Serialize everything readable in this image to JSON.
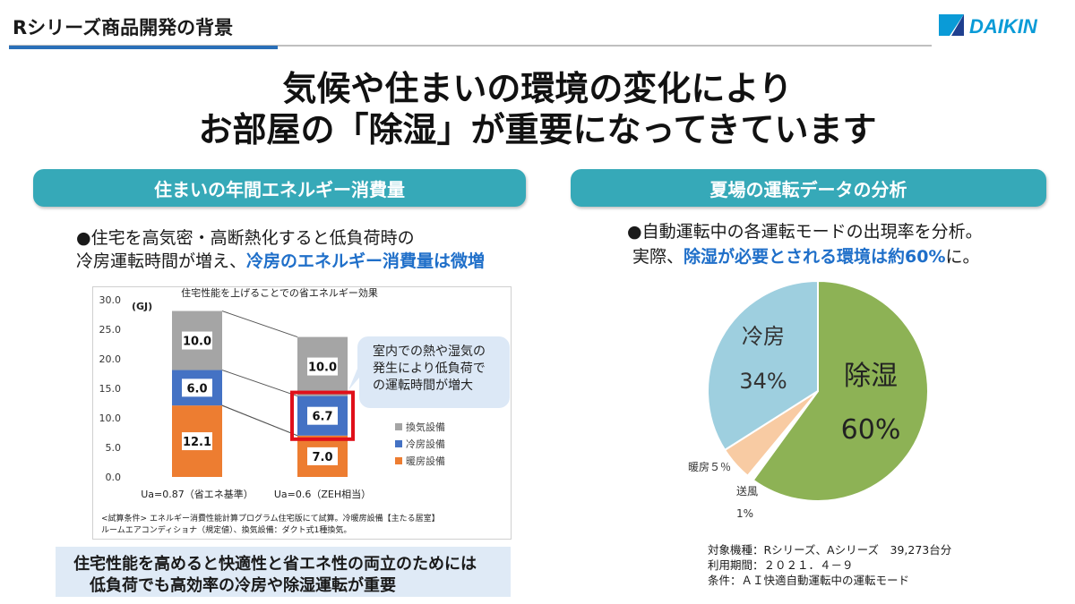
{
  "header": {
    "title": "Rシリーズ商品開発の背景",
    "logo_text": "DAIKIN"
  },
  "headline": {
    "line1": "気候や住まいの環境の変化により",
    "line2": "お部屋の「除湿」が重要になってきています"
  },
  "left": {
    "section_title": "住まいの年間エネルギー消費量",
    "desc_line1": "●住宅を高気密・高断熱化すると低負荷時の",
    "desc_line2_plain": "冷房運転時間が増え、",
    "desc_line2_hl": "冷房のエネルギー消費量は微増",
    "callout": [
      "室内での熱や湿気の",
      "発生により低負荷で",
      "の運転時間が増大"
    ],
    "footnote1": "<試算条件> エネルギー消費性能計算プログラム住宅版にて試算。冷暖房設備【主たる居室】",
    "footnote2": "ルームエアコンディショナ（規定値）、換気設備：ダクト式1種換気。",
    "conclusion1": "住宅性能を高めると快適性と省エネ性の両立のためには",
    "conclusion2": "低負荷でも高効率の冷房や除湿運転が重要"
  },
  "right": {
    "section_title": "夏場の運転データの分析",
    "desc_line1": "●自動運転中の各運転モードの出現率を分析。",
    "desc_line2_plain": "実際、",
    "desc_line2_hl": "除湿が必要とされる環境は約60%",
    "desc_line2_end": "に。",
    "meta1": "対象機種：Rシリーズ、Aシリーズ　39,273台分",
    "meta2": "利用期間：２０２１．４－９",
    "meta3": "条件：ＡＩ快適自動運転中の運転モード"
  },
  "chart_data": [
    {
      "type": "bar",
      "stacked": true,
      "title": "住宅性能を上げることでの省エネルギー効果",
      "ylabel": "(GJ)",
      "ylim": [
        0,
        30
      ],
      "yticks": [
        "0.0",
        "5.0",
        "10.0",
        "15.0",
        "20.0",
        "25.0",
        "30.0"
      ],
      "categories": [
        "Ua=0.87（省エネ基準）",
        "Ua=0.6（ZEH相当）"
      ],
      "series": [
        {
          "name": "暖房設備",
          "values": [
            12.1,
            7.0
          ],
          "labels": [
            "12.1",
            "7.0"
          ],
          "color": "#ed7d31"
        },
        {
          "name": "冷房設備",
          "values": [
            6.0,
            6.7
          ],
          "labels": [
            "6.0",
            "6.7"
          ],
          "color": "#4472c4"
        },
        {
          "name": "換気設備",
          "values": [
            10.0,
            10.0
          ],
          "labels": [
            "10.0",
            "10.0"
          ],
          "color": "#a5a5a5"
        }
      ],
      "legend_order": [
        "換気設備",
        "冷房設備",
        "暖房設備"
      ],
      "legend_position": "right",
      "grid": false
    },
    {
      "type": "pie",
      "slices": [
        {
          "label": "除湿",
          "value": 60,
          "pct_label": "60%",
          "color": "#8db255"
        },
        {
          "label": "送風",
          "value": 1,
          "pct_label": "1%",
          "color": "#ffffff"
        },
        {
          "label": "暖房",
          "value": 5,
          "pct_label": "5%",
          "display": "暖房５％",
          "color": "#f8cba3"
        },
        {
          "label": "冷房",
          "value": 34,
          "pct_label": "34%",
          "color": "#9ecfdf"
        }
      ]
    }
  ]
}
